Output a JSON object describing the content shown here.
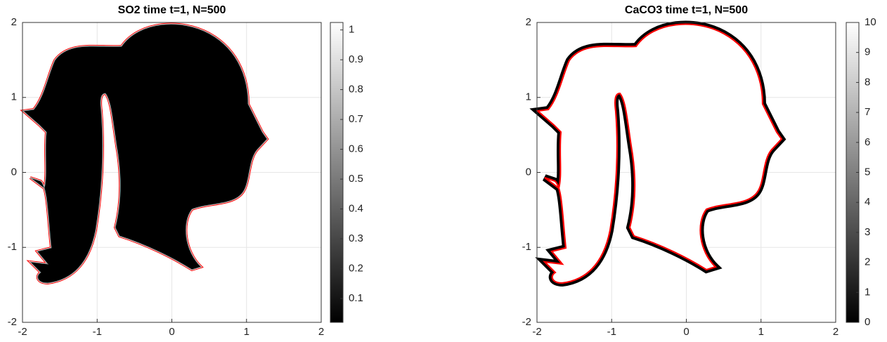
{
  "chart_data": [
    {
      "type": "heatmap",
      "title": "SO2   time t=1, N=500",
      "xlim": [
        -2,
        2
      ],
      "ylim": [
        -2,
        2
      ],
      "xticks": [
        -2,
        -1,
        0,
        1,
        2
      ],
      "yticks": [
        -2,
        -1,
        0,
        1,
        2
      ],
      "grid": true,
      "colormap": [
        "#000000",
        "#ffffff"
      ],
      "interior_color": "#000000",
      "boundary_color": "#ff0000",
      "clim": [
        0.02,
        1.025
      ],
      "cticks": [
        0.1,
        0.2,
        0.3,
        0.4,
        0.5,
        0.6,
        0.7,
        0.8,
        0.9,
        1
      ]
    },
    {
      "type": "heatmap",
      "title": "CaCO3   time t=1, N=500",
      "xlim": [
        -2,
        2
      ],
      "ylim": [
        -2,
        2
      ],
      "xticks": [
        -2,
        -1,
        0,
        1,
        2
      ],
      "yticks": [
        -2,
        -1,
        0,
        1,
        2
      ],
      "grid": true,
      "colormap": [
        "#000000",
        "#ffffff"
      ],
      "interior_color": "#ffffff",
      "boundary_color": "#ff0000",
      "clim": [
        0,
        10
      ],
      "cticks": [
        0,
        1,
        2,
        3,
        4,
        5,
        6,
        7,
        8,
        9,
        10
      ]
    }
  ]
}
